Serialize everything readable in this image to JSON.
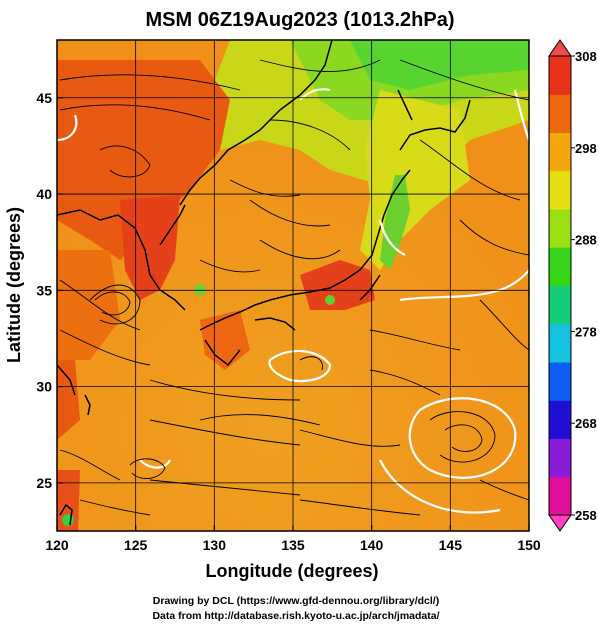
{
  "title": "MSM 06Z19Aug2023 (1013.2hPa)",
  "axes": {
    "xlabel": "Longitude (degrees)",
    "ylabel": "Latitude  (degrees)",
    "xlim": [
      120,
      150
    ],
    "ylim": [
      22.5,
      48
    ],
    "xticks": [
      {
        "value": 120,
        "label": "120"
      },
      {
        "value": 125,
        "label": "125"
      },
      {
        "value": 130,
        "label": "130"
      },
      {
        "value": 135,
        "label": "135"
      },
      {
        "value": 140,
        "label": "140"
      },
      {
        "value": 145,
        "label": "145"
      },
      {
        "value": 150,
        "label": "150"
      }
    ],
    "yticks": [
      {
        "value": 25,
        "label": "25"
      },
      {
        "value": 30,
        "label": "30"
      },
      {
        "value": 35,
        "label": "35"
      },
      {
        "value": 40,
        "label": "40"
      },
      {
        "value": 45,
        "label": "45"
      }
    ],
    "grid": true
  },
  "colorbar": {
    "min": 258,
    "max": 308,
    "ticks": [
      {
        "value": 308,
        "label": "308"
      },
      {
        "value": 298,
        "label": "298"
      },
      {
        "value": 288,
        "label": "288"
      },
      {
        "value": 278,
        "label": "278"
      },
      {
        "value": 268,
        "label": "268"
      },
      {
        "value": 258,
        "label": "258"
      }
    ],
    "stops": [
      "#e0109c",
      "#8a1bd6",
      "#2010d4",
      "#0c5ef2",
      "#14c2e0",
      "#16cc78",
      "#34d418",
      "#9adf14",
      "#e6e010",
      "#f4a60c",
      "#f0680c",
      "#e8321a"
    ],
    "triangle_top_color": "#f04a4a",
    "triangle_bottom_color": "#ff40c8"
  },
  "credits": {
    "line1": "Drawing by DCL (https://www.gfd-dennou.org/library/dcl/)",
    "line2": "Data from http://database.rish.kyoto-u.ac.jp/arch/jmadata/"
  }
}
